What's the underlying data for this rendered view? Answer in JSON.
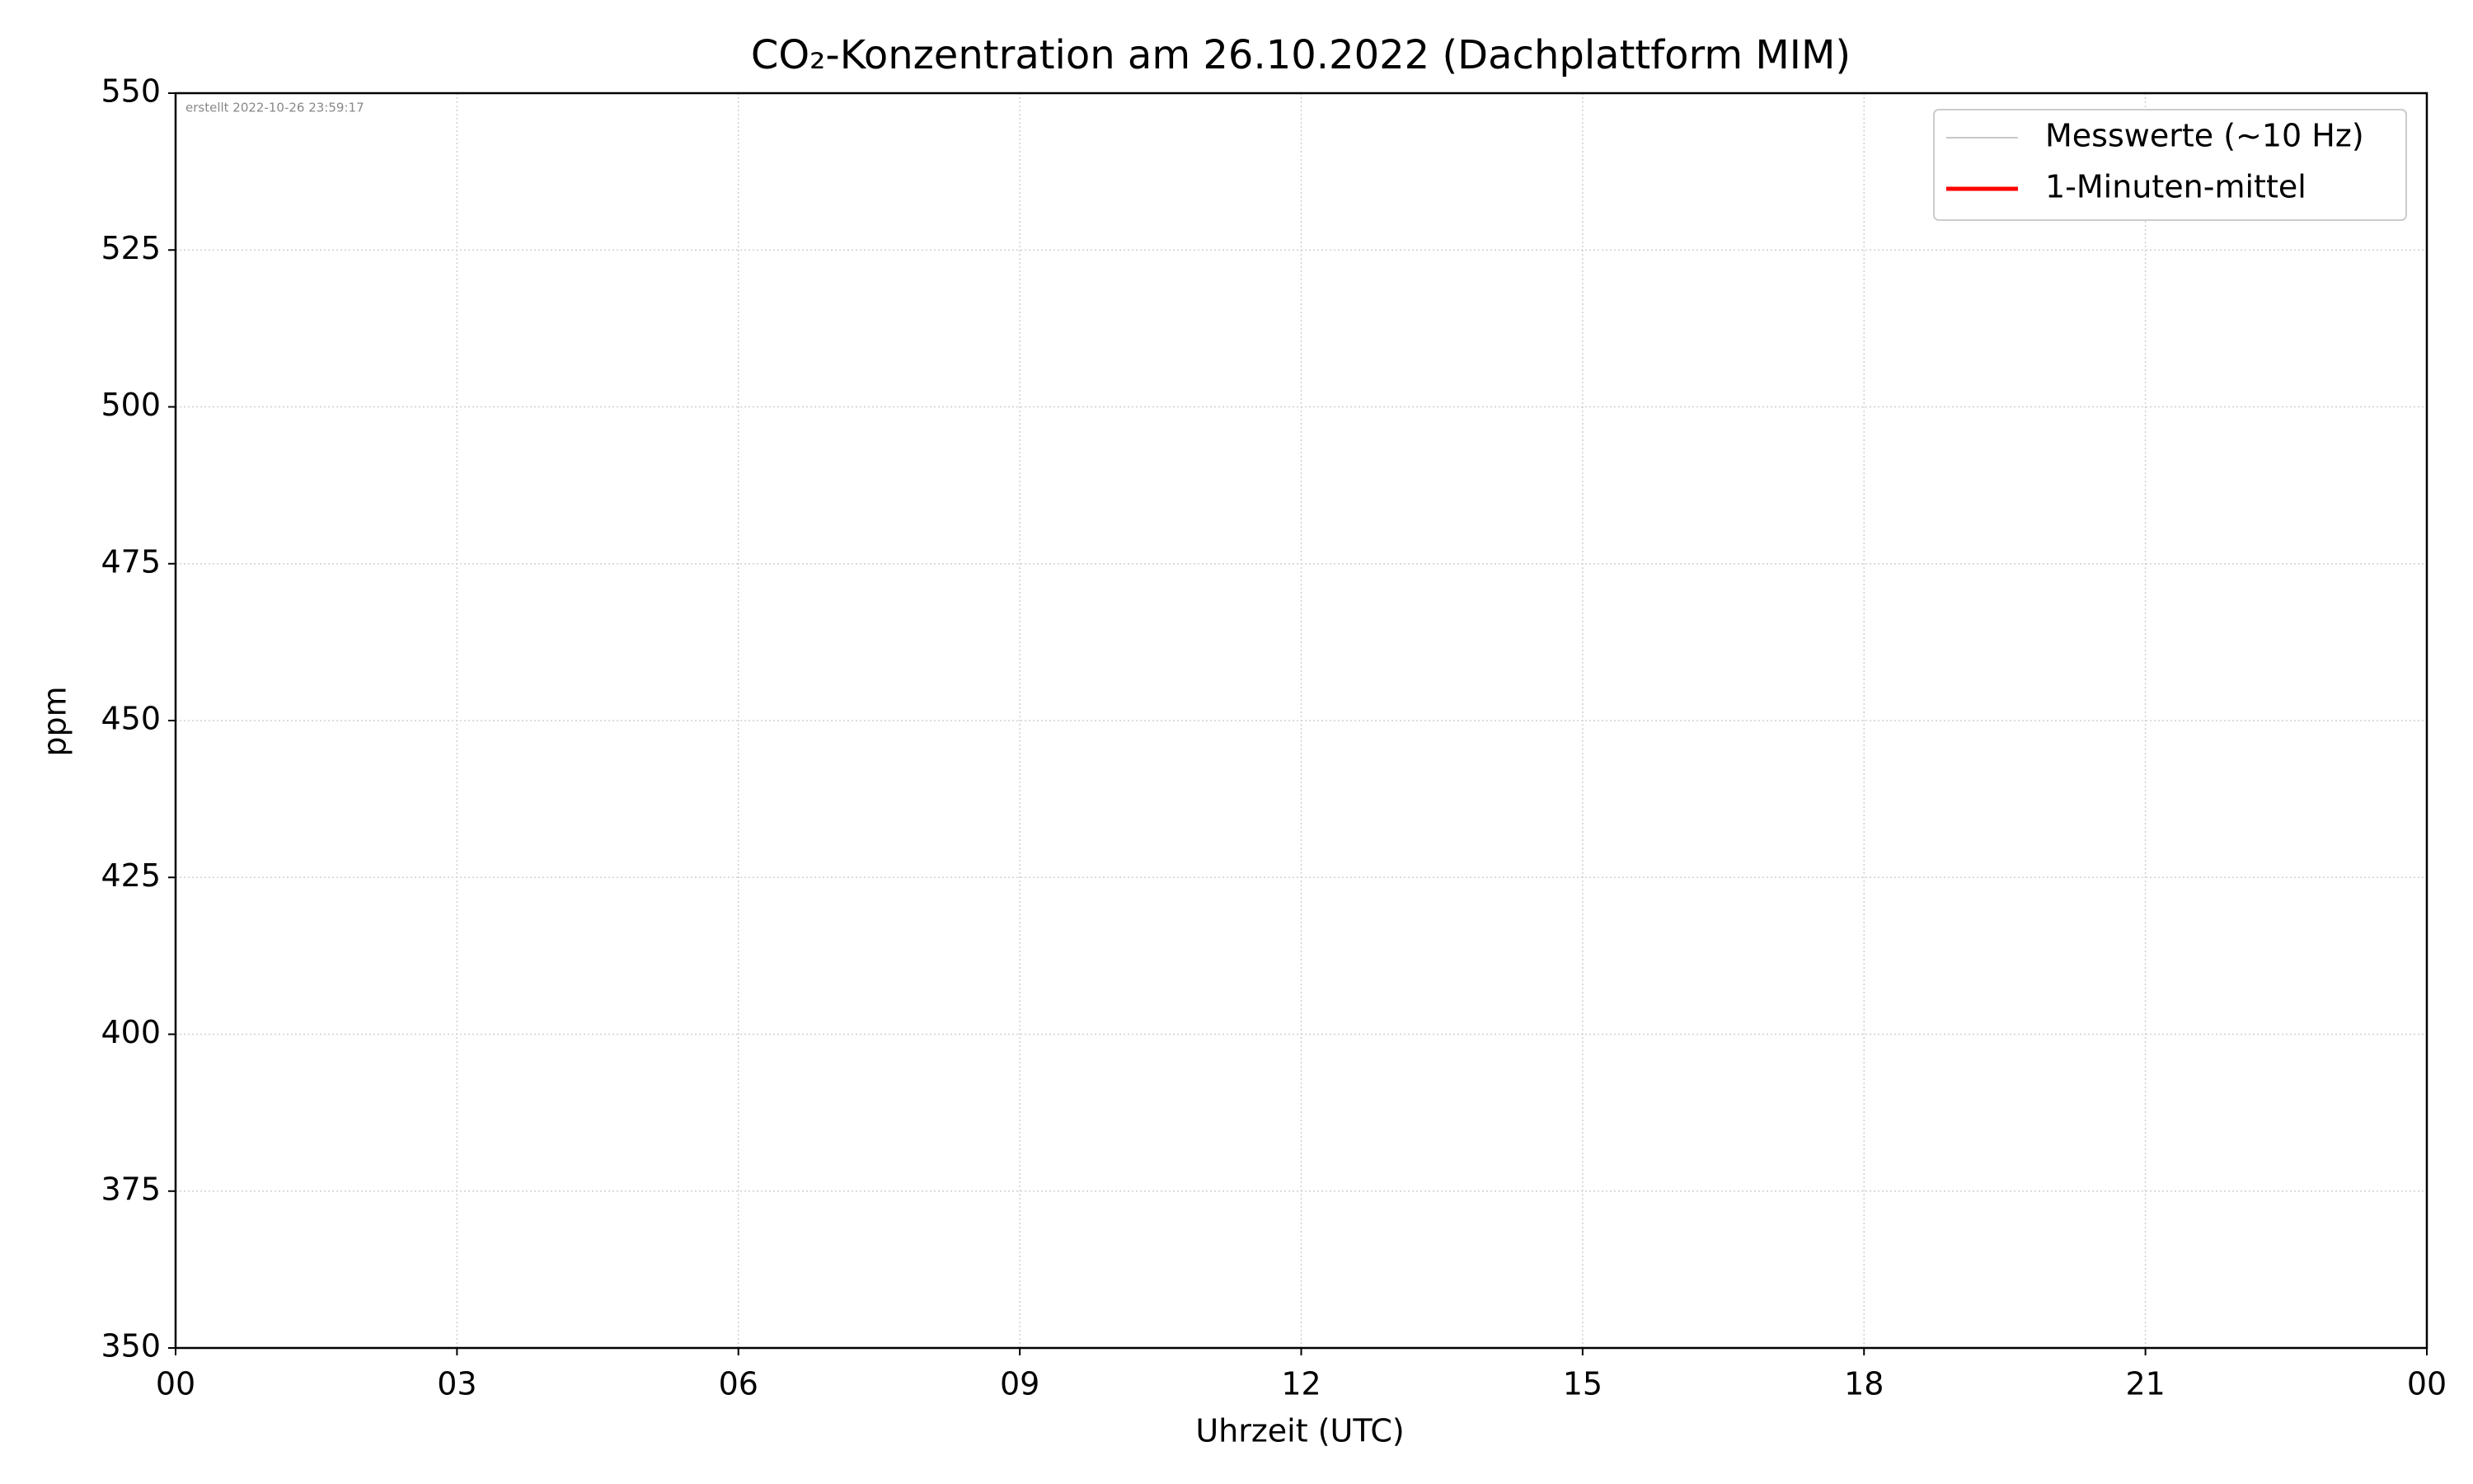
{
  "chart_data": {
    "type": "line",
    "title": "CO₂-Konzentration am 26.10.2022 (Dachplattform MIM)",
    "annotation": "erstellt 2022-10-26 23:59:17",
    "x_label": "Uhrzeit (UTC)",
    "y_label": "ppm",
    "x": [],
    "series": [
      {
        "name": "Messwerte (~10 Hz)",
        "color": "#c8c8c8",
        "values": []
      },
      {
        "name": "1-Minuten-mittel",
        "color": "#ff0000",
        "values": []
      }
    ],
    "xlim": [
      0,
      24
    ],
    "xticks": [
      {
        "value": 0,
        "label": "00"
      },
      {
        "value": 3,
        "label": "03"
      },
      {
        "value": 6,
        "label": "06"
      },
      {
        "value": 9,
        "label": "09"
      },
      12,
      15,
      18,
      21,
      {
        "value": 24,
        "label": "00"
      }
    ],
    "ylim": [
      350,
      550
    ],
    "yticks": [
      350,
      375,
      400,
      425,
      450,
      475,
      500,
      525,
      550
    ],
    "grid": true,
    "legend": "upper right"
  }
}
